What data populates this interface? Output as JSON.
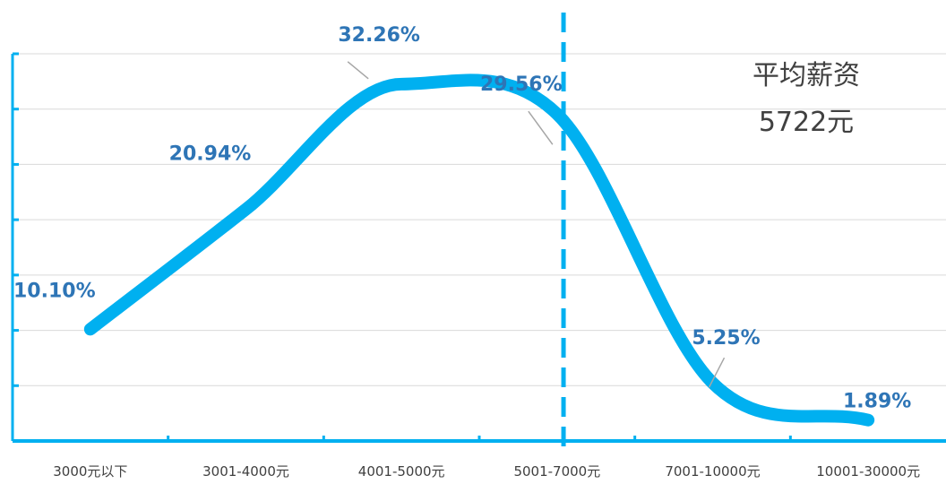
{
  "chart_data": {
    "type": "line",
    "categories": [
      "3000元以下",
      "3001-4000元",
      "4001-5000元",
      "5001-7000元",
      "7001-10000元",
      "10001-30000元"
    ],
    "series": [
      {
        "values": [
          10.1,
          20.94,
          32.26,
          29.56,
          5.25,
          1.89
        ]
      }
    ],
    "data_labels": [
      "10.10%",
      "20.94%",
      "32.26%",
      "29.56%",
      "5.25%",
      "1.89%"
    ],
    "ylim": [
      0,
      35
    ],
    "smooth": true,
    "grid": true,
    "legend": "none",
    "annotation": {
      "title": "平均薪资",
      "value": "5722元",
      "average_salary": 5722
    },
    "colors": {
      "line": "#00B0F0",
      "axis": "#00B0F0",
      "reference_line": "#00B0F0",
      "data_label": "#2E75B6",
      "grid": "#D9D9D9",
      "leader_line": "#A6A6A6"
    }
  }
}
